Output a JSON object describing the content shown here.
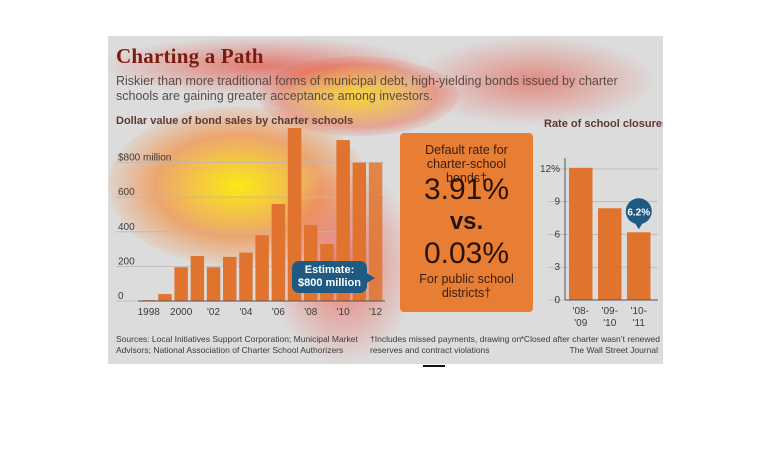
{
  "title": "Charting a Path",
  "subtitle": "Riskier than more traditional forms of municipal debt, high-yielding bonds issued by charter schools are gaining greater acceptance among investors.",
  "left_panel_title": "Dollar value of bond sales by charter schools",
  "right_panel_title": "Rate of school closures*",
  "middle": {
    "label_top": "Default rate for charter-school bonds†",
    "value_charter": "3.91%",
    "vs": "vs.",
    "value_public": "0.03%",
    "label_bottom": "For public school districts†"
  },
  "estimate_callout": "Estimate: $800 million",
  "closure_callout": "6.2%",
  "footnotes": {
    "sources": "Sources: Local Initiatives Support Corporation; Municipal Market Advisors; National Association of Charter School Authorizers",
    "dagger": "†Includes missed payments, drawing on reserves and contract violations",
    "asterisk": "*Closed after charter wasn’t renewed",
    "credit": "The Wall Street Journal"
  },
  "colors": {
    "bar": "#e0742e",
    "title": "#7a1d10",
    "callout": "#1e5a82",
    "box": "#e87e34"
  },
  "chart_data": [
    {
      "type": "bar",
      "title": "Dollar value of bond sales by charter schools",
      "categories": [
        "1998",
        "1999",
        "2000",
        "2001",
        "2002",
        "2003",
        "2004",
        "2005",
        "2006",
        "2007",
        "2008",
        "2009",
        "2010",
        "2011",
        "2012"
      ],
      "x_tick_labels": [
        "1998",
        "",
        "2000",
        "",
        "'02",
        "",
        "'04",
        "",
        "'06",
        "",
        "'08",
        "",
        "'10",
        "",
        "'12"
      ],
      "values": [
        5,
        40,
        195,
        260,
        195,
        255,
        280,
        380,
        560,
        1000,
        440,
        330,
        930,
        800,
        800
      ],
      "estimated": [
        false,
        false,
        false,
        false,
        false,
        false,
        false,
        false,
        false,
        false,
        false,
        false,
        false,
        false,
        true
      ],
      "y_ticks": [
        0,
        200,
        400,
        600,
        800
      ],
      "y_tick_labels": [
        "0",
        "200",
        "400",
        "600",
        "$800 million"
      ],
      "ylim": [
        0,
        1000
      ],
      "grid": true
    },
    {
      "type": "bar",
      "title": "Rate of school closures*",
      "categories": [
        "'08-'09",
        "'09-'10",
        "'10-'11"
      ],
      "values": [
        12.1,
        8.4,
        6.2
      ],
      "y_ticks": [
        0,
        3,
        6,
        9,
        12
      ],
      "y_tick_labels": [
        "0",
        "3",
        "6",
        "9",
        "12%"
      ],
      "ylim": [
        0,
        13
      ],
      "grid": true,
      "annotation": "6.2%"
    }
  ]
}
